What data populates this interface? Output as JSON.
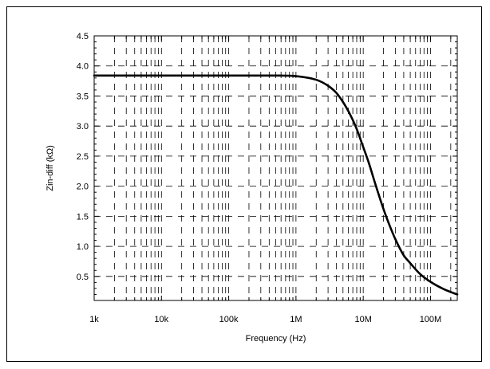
{
  "chart_data": {
    "type": "line",
    "title": "",
    "xlabel": "Frequency (Hz)",
    "ylabel": "Zin-diff (kΩ)",
    "xscale": "log",
    "xlim": [
      1000,
      250000000
    ],
    "ylim": [
      0.1,
      4.5
    ],
    "x_tick_labels": [
      "1k",
      "10k",
      "100k",
      "1M",
      "10M",
      "100M"
    ],
    "x_tick_values": [
      1000,
      10000,
      100000,
      1000000,
      10000000,
      100000000
    ],
    "y_tick_labels": [
      "0.5",
      "1.0",
      "1.5",
      "2.0",
      "2.5",
      "3.0",
      "3.5",
      "4.0",
      "4.5"
    ],
    "y_tick_values": [
      0.5,
      1.0,
      1.5,
      2.0,
      2.5,
      3.0,
      3.5,
      4.0,
      4.5
    ],
    "grid": true,
    "legend": "none",
    "series": [
      {
        "x": [
          1000,
          10000,
          100000,
          500000,
          1000000,
          2000000,
          3000000,
          4000000,
          5000000,
          6000000,
          7000000,
          8000000,
          10000000,
          12000000,
          15000000,
          20000000,
          25000000,
          30000000,
          40000000,
          50000000,
          70000000,
          100000000,
          150000000,
          200000000,
          250000000
        ],
        "y": [
          3.84,
          3.84,
          3.84,
          3.84,
          3.83,
          3.77,
          3.67,
          3.55,
          3.4,
          3.25,
          3.1,
          2.95,
          2.65,
          2.4,
          2.05,
          1.62,
          1.33,
          1.12,
          0.85,
          0.72,
          0.54,
          0.41,
          0.3,
          0.24,
          0.2
        ],
        "color": "#000000"
      }
    ]
  }
}
